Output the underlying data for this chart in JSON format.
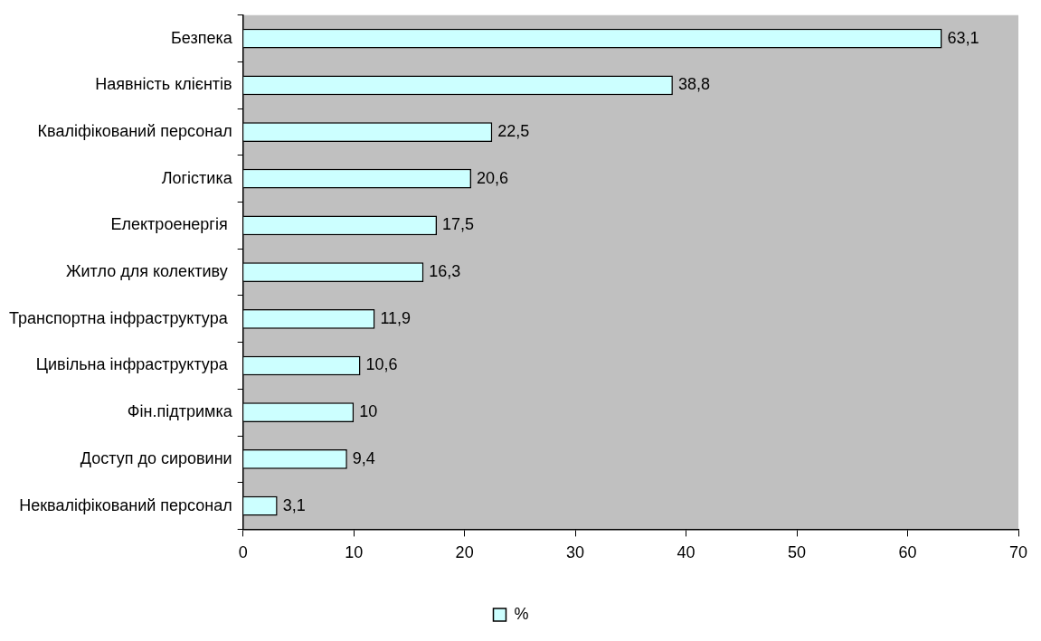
{
  "chart_data": {
    "type": "bar",
    "orientation": "horizontal",
    "categories": [
      "Безпека",
      "Наявність клієнтів",
      "Кваліфікований персонал",
      "Логістика",
      "Електроенергія ",
      "Житло для колективу ",
      "Транспортна інфраструктура ",
      "Цивільна інфраструктура ",
      "Фін.підтримка",
      "Доступ до сировини",
      "Некваліфікований персонал"
    ],
    "series": [
      {
        "name": "%",
        "color": "#ccffff",
        "values": [
          63.1,
          38.8,
          22.5,
          20.6,
          17.5,
          16.3,
          11.9,
          10.6,
          10,
          9.4,
          3.1
        ],
        "value_labels": [
          "63,1",
          "38,8",
          "22,5",
          "20,6",
          "17,5",
          "16,3",
          "11,9",
          "10,6",
          "10",
          "9,4",
          "3,1"
        ]
      }
    ],
    "xlim": [
      0,
      70
    ],
    "xticks": [
      0,
      10,
      20,
      30,
      40,
      50,
      60,
      70
    ],
    "grid": false,
    "legend": "bottom"
  }
}
